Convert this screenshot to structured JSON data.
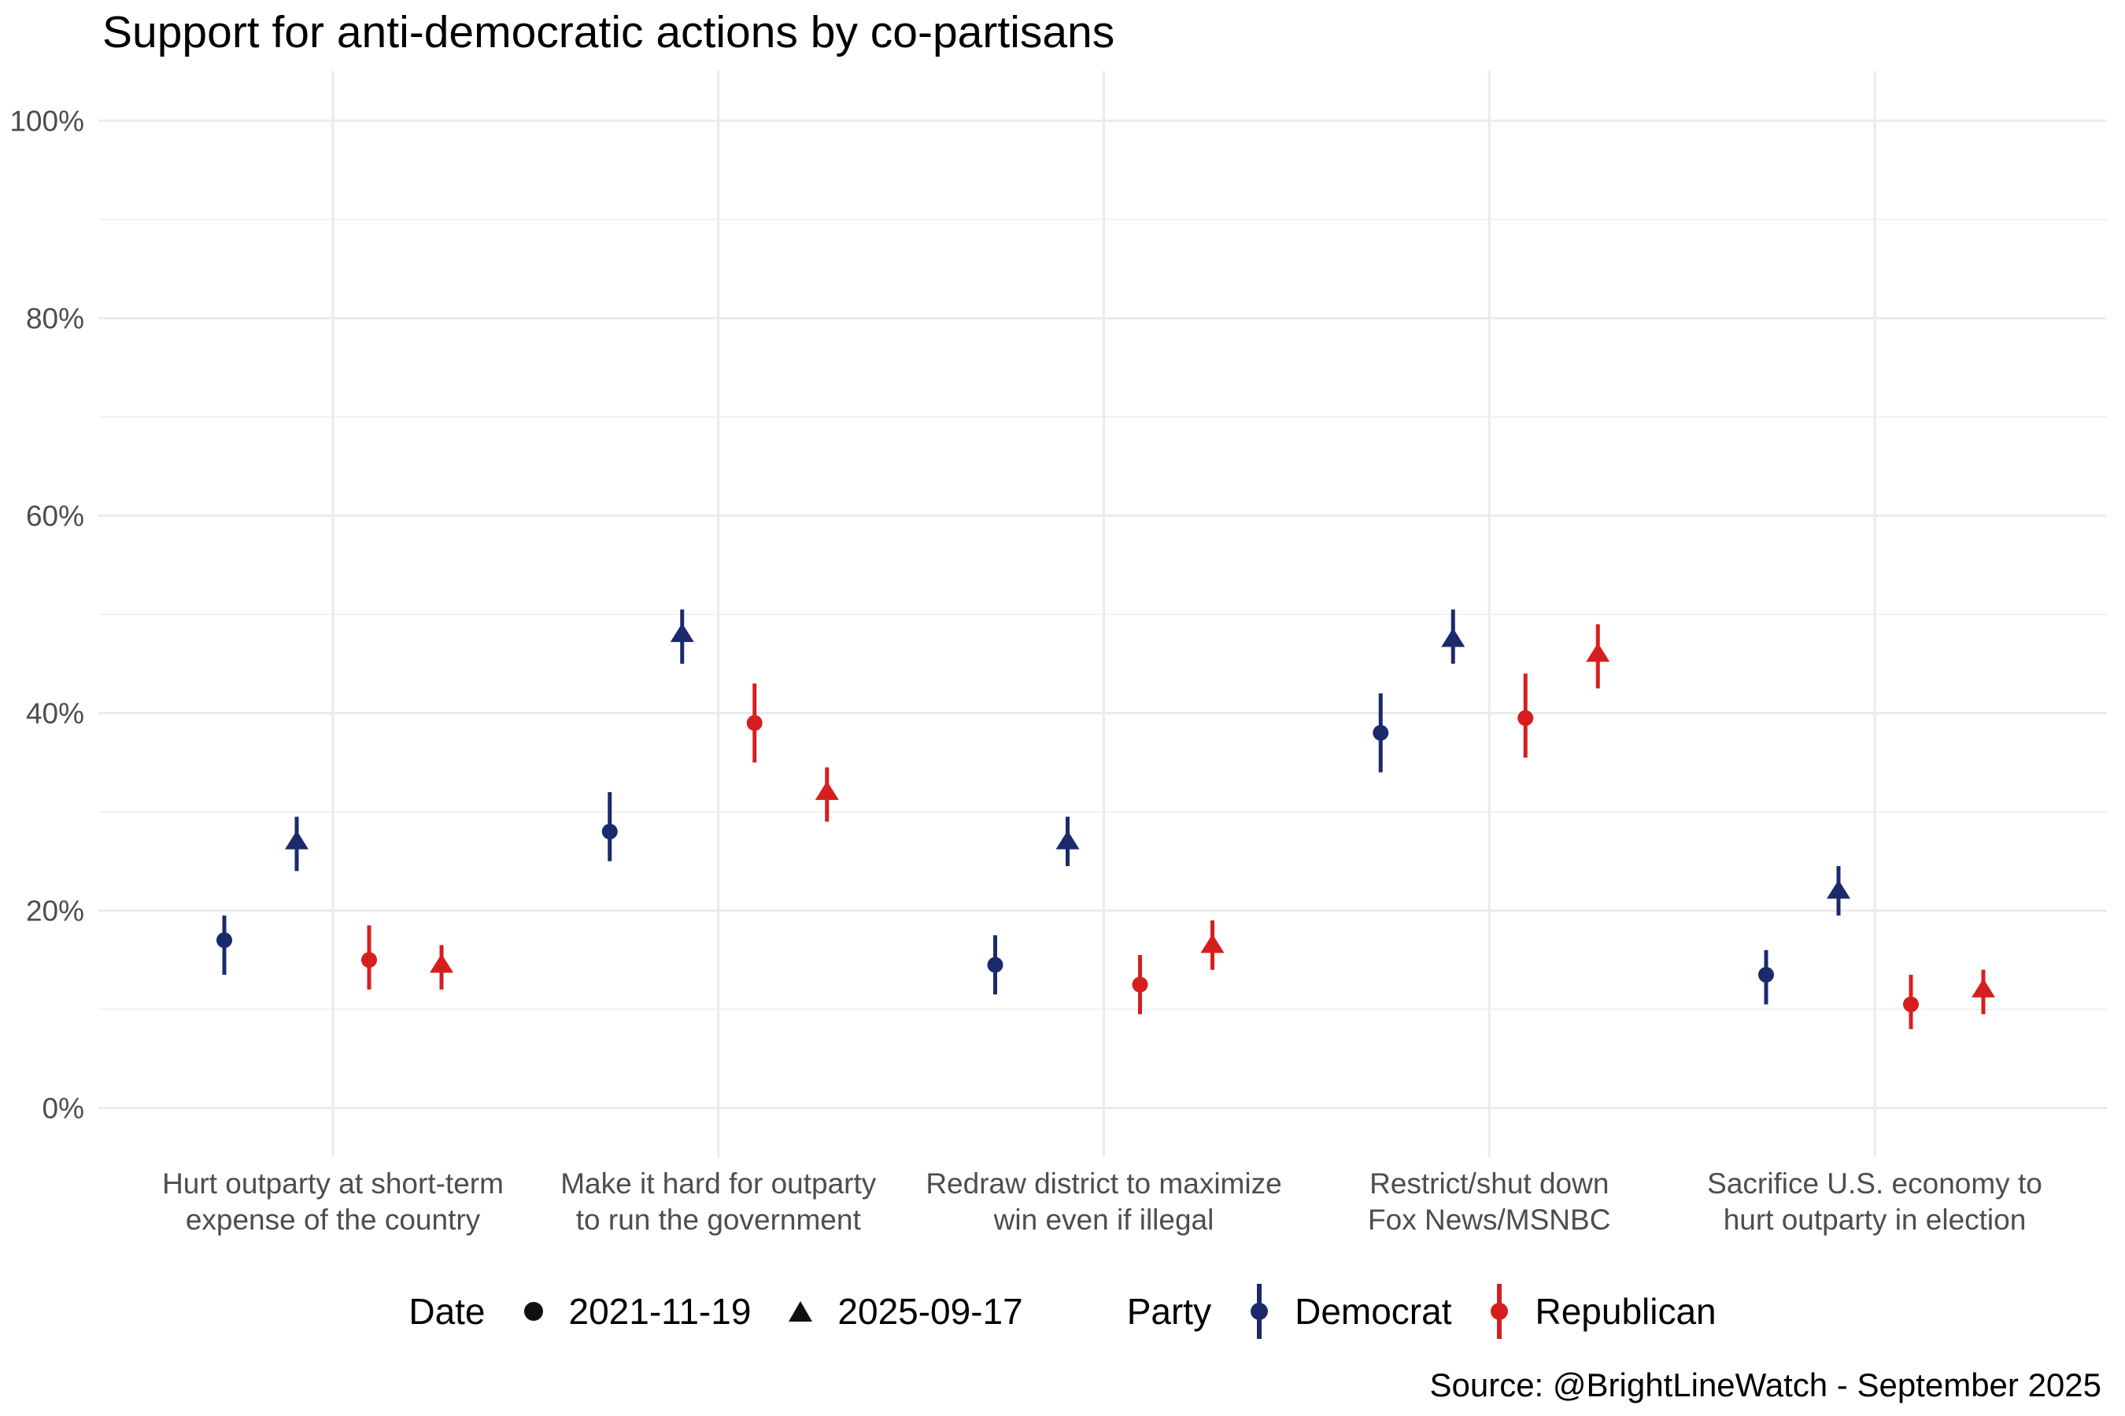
{
  "chart_data": {
    "type": "scatter",
    "subtype": "pointrange-dodged",
    "title": "Support for anti-democratic actions by co-partisans",
    "source": "Source: @BrightLineWatch - September 2025",
    "ylabel": "",
    "xlabel": "",
    "ylim": [
      0,
      100
    ],
    "grid": "on",
    "legend_position": "bottom",
    "yticks": {
      "major": [
        {
          "value": 0,
          "label": "0%"
        },
        {
          "value": 20,
          "label": "20%"
        },
        {
          "value": 40,
          "label": "40%"
        },
        {
          "value": 60,
          "label": "60%"
        },
        {
          "value": 80,
          "label": "80%"
        },
        {
          "value": 100,
          "label": "100%"
        }
      ],
      "minor": [
        10,
        30,
        50,
        70,
        90
      ]
    },
    "categories": [
      {
        "lines": [
          "Hurt outparty at short-term",
          "expense of the country"
        ]
      },
      {
        "lines": [
          "Make it hard for outparty",
          "to run the government"
        ]
      },
      {
        "lines": [
          "Redraw district to maximize",
          "win even if illegal"
        ]
      },
      {
        "lines": [
          "Restrict/shut down",
          "Fox News/MSNBC"
        ]
      },
      {
        "lines": [
          "Sacrifice U.S. economy to",
          "hurt outparty in election"
        ]
      }
    ],
    "series": [
      {
        "name": "Democrat 2021-11-19",
        "party": "Democrat",
        "date": "2021-11-19",
        "shape": "circle",
        "color": "#1b2a6c",
        "values": [
          17,
          28,
          14.5,
          38,
          13.5
        ],
        "ci_low": [
          13.5,
          25,
          11.5,
          34,
          10.5
        ],
        "ci_high": [
          19.5,
          32,
          17.5,
          42,
          16
        ]
      },
      {
        "name": "Democrat 2025-09-17",
        "party": "Democrat",
        "date": "2025-09-17",
        "shape": "triangle",
        "color": "#1b2a6c",
        "values": [
          27,
          48,
          27,
          47.5,
          22
        ],
        "ci_low": [
          24,
          45,
          24.5,
          45,
          19.5
        ],
        "ci_high": [
          29.5,
          50.5,
          29.5,
          50.5,
          24.5
        ]
      },
      {
        "name": "Republican 2021-11-19",
        "party": "Republican",
        "date": "2021-11-19",
        "shape": "circle",
        "color": "#d71e1e",
        "values": [
          15,
          39,
          12.5,
          39.5,
          10.5
        ],
        "ci_low": [
          12,
          35,
          9.5,
          35.5,
          8
        ],
        "ci_high": [
          18.5,
          43,
          15.5,
          44,
          13.5
        ]
      },
      {
        "name": "Republican 2025-09-17",
        "party": "Republican",
        "date": "2025-09-17",
        "shape": "triangle",
        "color": "#d71e1e",
        "values": [
          14.5,
          32,
          16.5,
          46,
          12
        ],
        "ci_low": [
          12,
          29,
          14,
          42.5,
          9.5
        ],
        "ci_high": [
          16.5,
          34.5,
          19,
          49,
          14
        ]
      }
    ],
    "colors": {
      "democrat": "#1b2a6c",
      "republican": "#d71e1e",
      "grid_major": "#ebebeb",
      "grid_minor": "#f2f2f2",
      "axis_text": "#4d4d4d",
      "black": "#111111"
    }
  },
  "legend": {
    "date_title": "Date",
    "date_items": [
      {
        "label": "2021-11-19",
        "shape": "circle"
      },
      {
        "label": "2025-09-17",
        "shape": "triangle"
      }
    ],
    "party_title": "Party",
    "party_items": [
      {
        "label": "Democrat",
        "color": "#1b2a6c"
      },
      {
        "label": "Republican",
        "color": "#d71e1e"
      }
    ]
  }
}
